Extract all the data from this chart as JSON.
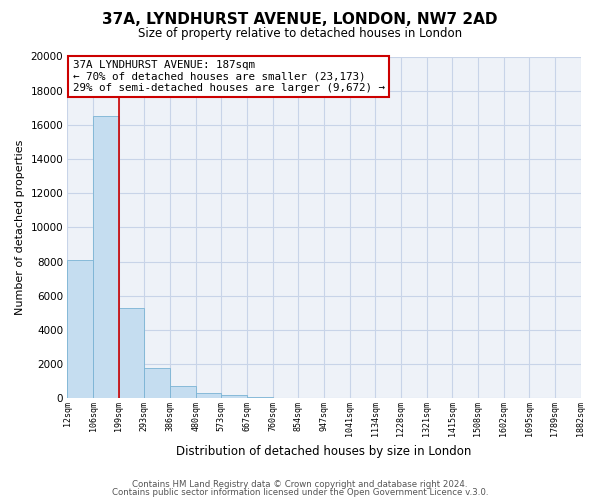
{
  "title": "37A, LYNDHURST AVENUE, LONDON, NW7 2AD",
  "subtitle": "Size of property relative to detached houses in London",
  "xlabel": "Distribution of detached houses by size in London",
  "ylabel": "Number of detached properties",
  "bar_values": [
    8100,
    16500,
    5300,
    1800,
    750,
    300,
    200,
    100,
    0,
    0,
    0,
    0,
    0,
    0,
    0,
    0,
    0,
    0,
    0,
    0
  ],
  "x_labels": [
    "12sqm",
    "106sqm",
    "199sqm",
    "293sqm",
    "386sqm",
    "480sqm",
    "573sqm",
    "667sqm",
    "760sqm",
    "854sqm",
    "947sqm",
    "1041sqm",
    "1134sqm",
    "1228sqm",
    "1321sqm",
    "1415sqm",
    "1508sqm",
    "1602sqm",
    "1695sqm",
    "1789sqm",
    "1882sqm"
  ],
  "bar_color": "#c5ddf0",
  "bar_edge_color": "#7ab3d4",
  "vline_color": "#cc0000",
  "vline_x_idx": 2,
  "annotation_title": "37A LYNDHURST AVENUE: 187sqm",
  "annotation_line1": "← 70% of detached houses are smaller (23,173)",
  "annotation_line2": "29% of semi-detached houses are larger (9,672) →",
  "annotation_box_color": "#ffffff",
  "annotation_box_edge": "#cc0000",
  "ylim": [
    0,
    20000
  ],
  "yticks": [
    0,
    2000,
    4000,
    6000,
    8000,
    10000,
    12000,
    14000,
    16000,
    18000,
    20000
  ],
  "footer1": "Contains HM Land Registry data © Crown copyright and database right 2024.",
  "footer2": "Contains public sector information licensed under the Open Government Licence v.3.0.",
  "bg_color": "#ffffff",
  "plot_bg_color": "#eef2f8",
  "grid_color": "#c8d4e8"
}
